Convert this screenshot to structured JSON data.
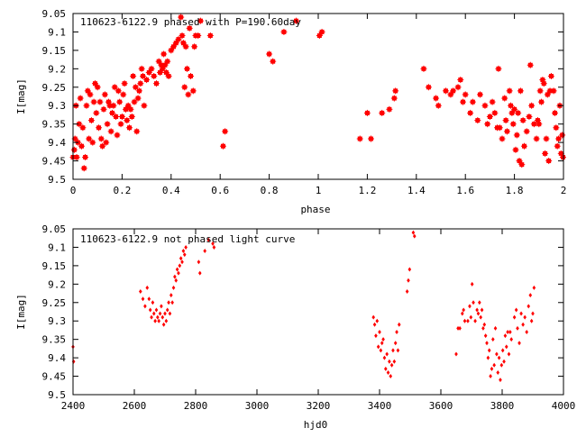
{
  "colors": {
    "points": "#ff0000",
    "axes": "#000000",
    "background": "#ffffff"
  },
  "chart_data": [
    {
      "type": "scatter",
      "title": "110623-6122.9 phased with P=190.60day",
      "xlabel": "phase",
      "ylabel": "I[mag]",
      "xlim": [
        0,
        2
      ],
      "ylim": [
        9.05,
        9.5
      ],
      "y_inverted": true,
      "grid": false,
      "legend": "none",
      "marker": "filled-square-cross",
      "x_ticks": [
        "0",
        "0.2",
        "0.4",
        "0.6",
        "0.8",
        "1",
        "1.2",
        "1.4",
        "1.6",
        "1.8",
        "2"
      ],
      "y_ticks": [
        "9.05",
        "9.1",
        "9.15",
        "9.2",
        "9.25",
        "9.3",
        "9.35",
        "9.4",
        "9.45",
        "9.5"
      ],
      "points": [
        [
          0.0,
          9.44
        ],
        [
          0.005,
          9.42
        ],
        [
          0.008,
          9.39
        ],
        [
          0.012,
          9.3
        ],
        [
          0.015,
          9.44
        ],
        [
          0.02,
          9.4
        ],
        [
          0.025,
          9.35
        ],
        [
          0.03,
          9.28
        ],
        [
          0.035,
          9.41
        ],
        [
          0.04,
          9.36
        ],
        [
          0.045,
          9.47
        ],
        [
          0.05,
          9.44
        ],
        [
          0.055,
          9.3
        ],
        [
          0.06,
          9.26
        ],
        [
          0.065,
          9.39
        ],
        [
          0.07,
          9.27
        ],
        [
          0.075,
          9.34
        ],
        [
          0.08,
          9.4
        ],
        [
          0.085,
          9.29
        ],
        [
          0.09,
          9.24
        ],
        [
          0.095,
          9.32
        ],
        [
          0.1,
          9.25
        ],
        [
          0.105,
          9.36
        ],
        [
          0.11,
          9.29
        ],
        [
          0.115,
          9.39
        ],
        [
          0.12,
          9.41
        ],
        [
          0.125,
          9.31
        ],
        [
          0.13,
          9.27
        ],
        [
          0.135,
          9.4
        ],
        [
          0.14,
          9.35
        ],
        [
          0.145,
          9.29
        ],
        [
          0.15,
          9.3
        ],
        [
          0.155,
          9.37
        ],
        [
          0.16,
          9.32
        ],
        [
          0.165,
          9.3
        ],
        [
          0.17,
          9.25
        ],
        [
          0.175,
          9.33
        ],
        [
          0.18,
          9.38
        ],
        [
          0.185,
          9.26
        ],
        [
          0.19,
          9.29
        ],
        [
          0.195,
          9.35
        ],
        [
          0.2,
          9.33
        ],
        [
          0.205,
          9.27
        ],
        [
          0.21,
          9.24
        ],
        [
          0.215,
          9.31
        ],
        [
          0.22,
          9.34
        ],
        [
          0.225,
          9.3
        ],
        [
          0.23,
          9.36
        ],
        [
          0.235,
          9.31
        ],
        [
          0.24,
          9.33
        ],
        [
          0.245,
          9.22
        ],
        [
          0.25,
          9.29
        ],
        [
          0.255,
          9.25
        ],
        [
          0.26,
          9.37
        ],
        [
          0.265,
          9.28
        ],
        [
          0.27,
          9.26
        ],
        [
          0.275,
          9.24
        ],
        [
          0.28,
          9.2
        ],
        [
          0.285,
          9.22
        ],
        [
          0.29,
          9.3
        ],
        [
          0.3,
          9.23
        ],
        [
          0.31,
          9.21
        ],
        [
          0.32,
          9.2
        ],
        [
          0.33,
          9.22
        ],
        [
          0.34,
          9.24
        ],
        [
          0.35,
          9.18
        ],
        [
          0.355,
          9.21
        ],
        [
          0.36,
          9.19
        ],
        [
          0.365,
          9.2
        ],
        [
          0.37,
          9.16
        ],
        [
          0.375,
          9.19
        ],
        [
          0.38,
          9.21
        ],
        [
          0.385,
          9.18
        ],
        [
          0.39,
          9.22
        ],
        [
          0.4,
          9.15
        ],
        [
          0.41,
          9.14
        ],
        [
          0.42,
          9.13
        ],
        [
          0.43,
          9.12
        ],
        [
          0.44,
          9.06
        ],
        [
          0.445,
          9.11
        ],
        [
          0.45,
          9.13
        ],
        [
          0.455,
          9.25
        ],
        [
          0.46,
          9.14
        ],
        [
          0.465,
          9.2
        ],
        [
          0.47,
          9.27
        ],
        [
          0.475,
          9.09
        ],
        [
          0.48,
          9.22
        ],
        [
          0.49,
          9.26
        ],
        [
          0.495,
          9.14
        ],
        [
          0.5,
          9.11
        ],
        [
          0.51,
          9.11
        ],
        [
          0.52,
          9.07
        ],
        [
          0.56,
          9.11
        ],
        [
          0.612,
          9.41
        ],
        [
          0.62,
          9.37
        ],
        [
          0.8,
          9.16
        ],
        [
          0.815,
          9.18
        ],
        [
          0.86,
          9.1
        ],
        [
          0.91,
          9.07
        ],
        [
          1.005,
          9.11
        ],
        [
          1.015,
          9.1
        ],
        [
          1.17,
          9.39
        ],
        [
          1.2,
          9.32
        ],
        [
          1.215,
          9.39
        ],
        [
          1.26,
          9.32
        ],
        [
          1.29,
          9.31
        ],
        [
          1.31,
          9.28
        ],
        [
          1.315,
          9.26
        ],
        [
          1.43,
          9.2
        ],
        [
          1.45,
          9.25
        ],
        [
          1.48,
          9.28
        ],
        [
          1.49,
          9.3
        ],
        [
          1.52,
          9.26
        ],
        [
          1.54,
          9.27
        ],
        [
          1.55,
          9.26
        ],
        [
          1.57,
          9.25
        ],
        [
          1.58,
          9.23
        ],
        [
          1.59,
          9.29
        ],
        [
          1.6,
          9.27
        ],
        [
          1.62,
          9.32
        ],
        [
          1.63,
          9.29
        ],
        [
          1.65,
          9.34
        ],
        [
          1.66,
          9.27
        ],
        [
          1.68,
          9.3
        ],
        [
          1.69,
          9.35
        ],
        [
          1.7,
          9.33
        ],
        [
          1.71,
          9.29
        ],
        [
          1.72,
          9.32
        ],
        [
          1.73,
          9.36
        ],
        [
          1.735,
          9.2
        ],
        [
          1.74,
          9.36
        ],
        [
          1.75,
          9.39
        ],
        [
          1.76,
          9.28
        ],
        [
          1.765,
          9.34
        ],
        [
          1.77,
          9.37
        ],
        [
          1.78,
          9.26
        ],
        [
          1.785,
          9.3
        ],
        [
          1.79,
          9.32
        ],
        [
          1.795,
          9.35
        ],
        [
          1.8,
          9.31
        ],
        [
          1.805,
          9.42
        ],
        [
          1.81,
          9.38
        ],
        [
          1.815,
          9.32
        ],
        [
          1.82,
          9.45
        ],
        [
          1.825,
          9.26
        ],
        [
          1.83,
          9.46
        ],
        [
          1.835,
          9.34
        ],
        [
          1.84,
          9.41
        ],
        [
          1.85,
          9.37
        ],
        [
          1.86,
          9.33
        ],
        [
          1.865,
          9.19
        ],
        [
          1.87,
          9.3
        ],
        [
          1.88,
          9.35
        ],
        [
          1.89,
          9.39
        ],
        [
          1.895,
          9.34
        ],
        [
          1.9,
          9.35
        ],
        [
          1.905,
          9.26
        ],
        [
          1.91,
          9.29
        ],
        [
          1.915,
          9.23
        ],
        [
          1.92,
          9.24
        ],
        [
          1.925,
          9.43
        ],
        [
          1.93,
          9.39
        ],
        [
          1.935,
          9.27
        ],
        [
          1.94,
          9.45
        ],
        [
          1.945,
          9.26
        ],
        [
          1.95,
          9.22
        ],
        [
          1.96,
          9.26
        ],
        [
          1.965,
          9.32
        ],
        [
          1.97,
          9.36
        ],
        [
          1.975,
          9.41
        ],
        [
          1.98,
          9.39
        ],
        [
          1.985,
          9.3
        ],
        [
          1.99,
          9.43
        ],
        [
          1.995,
          9.38
        ],
        [
          1.998,
          9.44
        ]
      ]
    },
    {
      "type": "scatter",
      "title": "110623-6122.9 not phased light curve",
      "xlabel": "hjd0",
      "ylabel": "I[mag]",
      "xlim": [
        2400,
        4000
      ],
      "ylim": [
        9.05,
        9.5
      ],
      "y_inverted": true,
      "grid": false,
      "legend": "none",
      "marker": "small-diamond",
      "x_ticks": [
        "2400",
        "2600",
        "2800",
        "3000",
        "3200",
        "3400",
        "3600",
        "3800",
        "4000"
      ],
      "y_ticks": [
        "9.05",
        "9.1",
        "9.15",
        "9.2",
        "9.25",
        "9.3",
        "9.35",
        "9.4",
        "9.45",
        "9.5"
      ],
      "points": [
        [
          2400,
          9.37
        ],
        [
          2402,
          9.41
        ],
        [
          2620,
          9.22
        ],
        [
          2628,
          9.24
        ],
        [
          2635,
          9.26
        ],
        [
          2642,
          9.21
        ],
        [
          2648,
          9.24
        ],
        [
          2652,
          9.27
        ],
        [
          2656,
          9.29
        ],
        [
          2660,
          9.25
        ],
        [
          2664,
          9.28
        ],
        [
          2668,
          9.3
        ],
        [
          2672,
          9.27
        ],
        [
          2676,
          9.29
        ],
        [
          2680,
          9.3
        ],
        [
          2684,
          9.28
        ],
        [
          2688,
          9.26
        ],
        [
          2692,
          9.29
        ],
        [
          2696,
          9.31
        ],
        [
          2700,
          9.28
        ],
        [
          2704,
          9.3
        ],
        [
          2708,
          9.27
        ],
        [
          2712,
          9.25
        ],
        [
          2716,
          9.28
        ],
        [
          2720,
          9.23
        ],
        [
          2724,
          9.25
        ],
        [
          2728,
          9.21
        ],
        [
          2732,
          9.18
        ],
        [
          2736,
          9.19
        ],
        [
          2740,
          9.16
        ],
        [
          2744,
          9.17
        ],
        [
          2748,
          9.15
        ],
        [
          2752,
          9.13
        ],
        [
          2756,
          9.14
        ],
        [
          2760,
          9.11
        ],
        [
          2764,
          9.12
        ],
        [
          2768,
          9.1
        ],
        [
          2810,
          9.14
        ],
        [
          2814,
          9.17
        ],
        [
          2830,
          9.11
        ],
        [
          2842,
          9.08
        ],
        [
          2856,
          9.09
        ],
        [
          2860,
          9.1
        ],
        [
          3380,
          9.29
        ],
        [
          3384,
          9.31
        ],
        [
          3388,
          9.34
        ],
        [
          3392,
          9.3
        ],
        [
          3396,
          9.37
        ],
        [
          3400,
          9.33
        ],
        [
          3404,
          9.38
        ],
        [
          3408,
          9.36
        ],
        [
          3412,
          9.35
        ],
        [
          3416,
          9.4
        ],
        [
          3420,
          9.43
        ],
        [
          3424,
          9.39
        ],
        [
          3428,
          9.44
        ],
        [
          3432,
          9.41
        ],
        [
          3436,
          9.45
        ],
        [
          3440,
          9.42
        ],
        [
          3444,
          9.38
        ],
        [
          3448,
          9.41
        ],
        [
          3452,
          9.36
        ],
        [
          3456,
          9.33
        ],
        [
          3460,
          9.38
        ],
        [
          3464,
          9.31
        ],
        [
          3490,
          9.22
        ],
        [
          3494,
          9.19
        ],
        [
          3498,
          9.16
        ],
        [
          3510,
          9.06
        ],
        [
          3514,
          9.07
        ],
        [
          3650,
          9.39
        ],
        [
          3656,
          9.32
        ],
        [
          3662,
          9.32
        ],
        [
          3670,
          9.28
        ],
        [
          3674,
          9.27
        ],
        [
          3678,
          9.3
        ],
        [
          3688,
          9.3
        ],
        [
          3694,
          9.26
        ],
        [
          3698,
          9.29
        ],
        [
          3702,
          9.2
        ],
        [
          3706,
          9.25
        ],
        [
          3712,
          9.3
        ],
        [
          3718,
          9.27
        ],
        [
          3722,
          9.28
        ],
        [
          3726,
          9.25
        ],
        [
          3730,
          9.29
        ],
        [
          3734,
          9.27
        ],
        [
          3738,
          9.32
        ],
        [
          3742,
          9.31
        ],
        [
          3746,
          9.34
        ],
        [
          3750,
          9.36
        ],
        [
          3754,
          9.4
        ],
        [
          3758,
          9.38
        ],
        [
          3762,
          9.45
        ],
        [
          3766,
          9.43
        ],
        [
          3770,
          9.35
        ],
        [
          3774,
          9.42
        ],
        [
          3778,
          9.32
        ],
        [
          3782,
          9.39
        ],
        [
          3786,
          9.44
        ],
        [
          3790,
          9.4
        ],
        [
          3794,
          9.46
        ],
        [
          3798,
          9.42
        ],
        [
          3802,
          9.38
        ],
        [
          3806,
          9.41
        ],
        [
          3810,
          9.34
        ],
        [
          3814,
          9.37
        ],
        [
          3818,
          9.33
        ],
        [
          3822,
          9.39
        ],
        [
          3826,
          9.33
        ],
        [
          3830,
          9.35
        ],
        [
          3840,
          9.29
        ],
        [
          3846,
          9.27
        ],
        [
          3850,
          9.32
        ],
        [
          3856,
          9.36
        ],
        [
          3862,
          9.28
        ],
        [
          3868,
          9.31
        ],
        [
          3874,
          9.29
        ],
        [
          3880,
          9.33
        ],
        [
          3886,
          9.26
        ],
        [
          3892,
          9.23
        ],
        [
          3896,
          9.3
        ],
        [
          3900,
          9.28
        ],
        [
          3904,
          9.21
        ]
      ]
    }
  ]
}
